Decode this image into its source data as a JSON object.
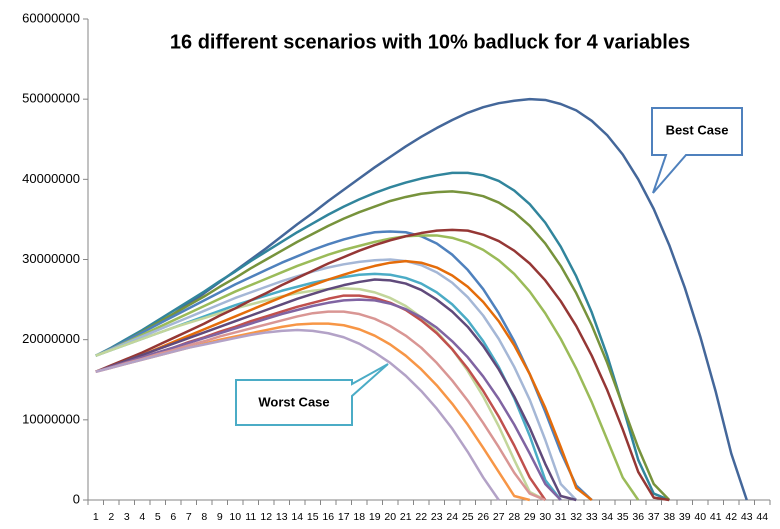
{
  "chart_data": {
    "type": "line",
    "title": "16 different scenarios with 10% badluck for 4 variables",
    "categories": [
      1,
      2,
      3,
      4,
      5,
      6,
      7,
      8,
      9,
      10,
      11,
      12,
      13,
      14,
      15,
      16,
      17,
      18,
      19,
      20,
      21,
      22,
      23,
      24,
      25,
      26,
      27,
      28,
      29,
      30,
      31,
      32,
      33,
      34,
      35,
      36,
      37,
      38,
      39,
      40,
      41,
      42,
      43,
      44
    ],
    "ylim": [
      0,
      60000000
    ],
    "yticks": [
      0,
      10000000,
      20000000,
      30000000,
      40000000,
      50000000,
      60000000
    ],
    "grid": false,
    "annotations": [
      {
        "text": "Best Case"
      },
      {
        "text": "Worst Case"
      }
    ],
    "series": [
      {
        "color": "#44679a",
        "values": [
          18000000,
          18800000,
          19800000,
          20900000,
          22000000,
          23200000,
          24500000,
          25800000,
          27200000,
          28600000,
          30000000,
          31400000,
          32900000,
          34400000,
          35800000,
          37300000,
          38700000,
          40100000,
          41500000,
          42800000,
          44100000,
          45300000,
          46400000,
          47400000,
          48300000,
          49000000,
          49500000,
          49800000,
          50000000,
          49900000,
          49400000,
          48600000,
          47300000,
          45500000,
          43100000,
          40000000,
          36300000,
          31800000,
          26500000,
          20400000,
          13500000,
          5800000,
          0,
          null
        ]
      },
      {
        "color": "#31859c",
        "values": [
          18000000,
          19000000,
          20100000,
          21200000,
          22400000,
          23600000,
          24800000,
          26000000,
          27300000,
          28500000,
          29800000,
          31000000,
          32200000,
          33400000,
          34500000,
          35600000,
          36600000,
          37500000,
          38300000,
          39000000,
          39600000,
          40100000,
          40500000,
          40800000,
          40800000,
          40500000,
          39800000,
          38600000,
          36900000,
          34600000,
          31600000,
          27900000,
          23400000,
          18000000,
          11700000,
          5000000,
          800000,
          0,
          null,
          null,
          null,
          null,
          null,
          null
        ]
      },
      {
        "color": "#77933c",
        "values": [
          18000000,
          18900000,
          19900000,
          21000000,
          22100000,
          23200000,
          24300000,
          25400000,
          26600000,
          27700000,
          28900000,
          30000000,
          31100000,
          32200000,
          33200000,
          34200000,
          35100000,
          35900000,
          36600000,
          37300000,
          37800000,
          38200000,
          38400000,
          38500000,
          38300000,
          37900000,
          37100000,
          35900000,
          34200000,
          32000000,
          29200000,
          25800000,
          21800000,
          17100000,
          11800000,
          6500000,
          2000000,
          0,
          null,
          null,
          null,
          null,
          null,
          null
        ]
      },
      {
        "color": "#4f81bd",
        "values": [
          18000000,
          18900000,
          19900000,
          20900000,
          21900000,
          22900000,
          23900000,
          24900000,
          25900000,
          26900000,
          27800000,
          28700000,
          29600000,
          30400000,
          31200000,
          31900000,
          32500000,
          33000000,
          33400000,
          33500000,
          33400000,
          32900000,
          32000000,
          30600000,
          28700000,
          26300000,
          23300000,
          19800000,
          15700000,
          11000000,
          6000000,
          1800000,
          0,
          null,
          null,
          null,
          null,
          null,
          null,
          null,
          null,
          null,
          null,
          null
        ]
      },
      {
        "color": "#9bbb59",
        "values": [
          18000000,
          18800000,
          19700000,
          20600000,
          21500000,
          22400000,
          23300000,
          24200000,
          25100000,
          26000000,
          26800000,
          27600000,
          28400000,
          29200000,
          29900000,
          30600000,
          31200000,
          31700000,
          32200000,
          32600000,
          32900000,
          33000000,
          33000000,
          32700000,
          32100000,
          31200000,
          29900000,
          28200000,
          26000000,
          23300000,
          20100000,
          16400000,
          12200000,
          7500000,
          2800000,
          0,
          null,
          null,
          null,
          null,
          null,
          null,
          null,
          null
        ]
      },
      {
        "color": "#a5b7d6",
        "values": [
          18000000,
          18800000,
          19600000,
          20400000,
          21200000,
          22000000,
          22800000,
          23600000,
          24400000,
          25200000,
          25900000,
          26600000,
          27300000,
          27900000,
          28500000,
          29000000,
          29400000,
          29700000,
          29900000,
          30000000,
          29800000,
          29300000,
          28400000,
          27100000,
          25300000,
          23000000,
          20100000,
          16600000,
          12500000,
          7500000,
          2000000,
          0,
          null,
          null,
          null,
          null,
          null,
          null,
          null,
          null,
          null,
          null,
          null,
          null
        ]
      },
      {
        "color": "#4bacc6",
        "values": [
          18000000,
          18700000,
          19400000,
          20100000,
          20800000,
          21500000,
          22200000,
          22900000,
          23600000,
          24300000,
          24900000,
          25500000,
          26100000,
          26600000,
          27100000,
          27500000,
          27800000,
          28100000,
          28200000,
          28100000,
          27700000,
          27000000,
          25900000,
          24400000,
          22400000,
          19800000,
          16600000,
          12700000,
          8000000,
          2500000,
          0,
          null,
          null,
          null,
          null,
          null,
          null,
          null,
          null,
          null,
          null,
          null,
          null,
          null
        ]
      },
      {
        "color": "#c3d69b",
        "values": [
          18000000,
          18700000,
          19400000,
          20100000,
          20800000,
          21500000,
          22100000,
          22700000,
          23300000,
          23900000,
          24400000,
          24900000,
          25400000,
          25800000,
          26100000,
          26300000,
          26400000,
          26300000,
          25900000,
          25200000,
          24200000,
          22800000,
          21000000,
          18800000,
          16100000,
          12900000,
          9200000,
          5000000,
          1000000,
          0,
          null,
          null,
          null,
          null,
          null,
          null,
          null,
          null,
          null,
          null,
          null,
          null,
          null,
          null
        ]
      },
      {
        "color": "#953735",
        "values": [
          16000000,
          16800000,
          17600000,
          18400000,
          19300000,
          20200000,
          21100000,
          22000000,
          23000000,
          23900000,
          24900000,
          25800000,
          26800000,
          27700000,
          28600000,
          29500000,
          30300000,
          31100000,
          31800000,
          32400000,
          32900000,
          33300000,
          33600000,
          33700000,
          33600000,
          33100000,
          32300000,
          31100000,
          29500000,
          27400000,
          24800000,
          21700000,
          18000000,
          13700000,
          8800000,
          3500000,
          300000,
          0,
          null,
          null,
          null,
          null,
          null,
          null
        ]
      },
      {
        "color": "#e46c0a",
        "values": [
          16000000,
          16700000,
          17400000,
          18100000,
          18900000,
          19700000,
          20500000,
          21300000,
          22100000,
          22900000,
          23700000,
          24500000,
          25300000,
          26100000,
          26800000,
          27500000,
          28100000,
          28700000,
          29200000,
          29600000,
          29800000,
          29600000,
          29000000,
          28000000,
          26600000,
          24700000,
          22300000,
          19300000,
          15700000,
          11500000,
          6600000,
          1500000,
          0,
          null,
          null,
          null,
          null,
          null,
          null,
          null,
          null,
          null,
          null,
          null
        ]
      },
      {
        "color": "#604a7b",
        "values": [
          16000000,
          16700000,
          17400000,
          18100000,
          18800000,
          19500000,
          20200000,
          20900000,
          21600000,
          22300000,
          23000000,
          23700000,
          24400000,
          25100000,
          25700000,
          26300000,
          26800000,
          27200000,
          27500000,
          27400000,
          27000000,
          26200000,
          25000000,
          23500000,
          21600000,
          19200000,
          16300000,
          12900000,
          9000000,
          4500000,
          500000,
          0,
          null,
          null,
          null,
          null,
          null,
          null,
          null,
          null,
          null,
          null,
          null,
          null
        ]
      },
      {
        "color": "#c0504d",
        "values": [
          16000000,
          16600000,
          17200000,
          17800000,
          18400000,
          19000000,
          19700000,
          20300000,
          21000000,
          21600000,
          22300000,
          22900000,
          23500000,
          24100000,
          24600000,
          25100000,
          25500000,
          25500000,
          25200000,
          24600000,
          23700000,
          22400000,
          20800000,
          18800000,
          16400000,
          13600000,
          10400000,
          6800000,
          2800000,
          0,
          null,
          null,
          null,
          null,
          null,
          null,
          null,
          null,
          null,
          null,
          null,
          null,
          null,
          null
        ]
      },
      {
        "color": "#8064a2",
        "values": [
          16000000,
          16600000,
          17200000,
          17800000,
          18400000,
          19000000,
          19600000,
          20200000,
          20800000,
          21400000,
          22000000,
          22600000,
          23200000,
          23700000,
          24200000,
          24600000,
          24900000,
          25000000,
          24900000,
          24500000,
          23800000,
          22800000,
          21500000,
          19800000,
          17800000,
          15400000,
          12600000,
          9400000,
          5800000,
          2000000,
          0,
          null,
          null,
          null,
          null,
          null,
          null,
          null,
          null,
          null,
          null,
          null,
          null,
          null
        ]
      },
      {
        "color": "#f79646",
        "values": [
          16000000,
          16500000,
          17000000,
          17500000,
          18000000,
          18500000,
          19000000,
          19500000,
          20000000,
          20400000,
          20800000,
          21200000,
          21600000,
          21900000,
          22000000,
          22000000,
          21800000,
          21300000,
          20500000,
          19400000,
          18000000,
          16300000,
          14300000,
          12000000,
          9400000,
          6500000,
          3500000,
          500000,
          0,
          null,
          null,
          null,
          null,
          null,
          null,
          null,
          null,
          null,
          null,
          null,
          null,
          null,
          null,
          null
        ]
      },
      {
        "color": "#d99694",
        "values": [
          16000000,
          16500000,
          17100000,
          17600000,
          18200000,
          18700000,
          19300000,
          19800000,
          20400000,
          20900000,
          21400000,
          21900000,
          22400000,
          22900000,
          23300000,
          23500000,
          23500000,
          23200000,
          22600000,
          21700000,
          20500000,
          19000000,
          17100000,
          14900000,
          12400000,
          9600000,
          6600000,
          3400000,
          800000,
          0,
          null,
          null,
          null,
          null,
          null,
          null,
          null,
          null,
          null,
          null,
          null,
          null,
          null,
          null
        ]
      },
      {
        "color": "#b3a2c7",
        "values": [
          16000000,
          16500000,
          17000000,
          17500000,
          18000000,
          18500000,
          19000000,
          19400000,
          19800000,
          20200000,
          20600000,
          20900000,
          21100000,
          21200000,
          21100000,
          20800000,
          20300000,
          19500000,
          18400000,
          17100000,
          15500000,
          13600000,
          11400000,
          8900000,
          6000000,
          2800000,
          0,
          null,
          null,
          null,
          null,
          null,
          null,
          null,
          null,
          null,
          null,
          null,
          null,
          null,
          null,
          null,
          null,
          null
        ]
      }
    ]
  }
}
